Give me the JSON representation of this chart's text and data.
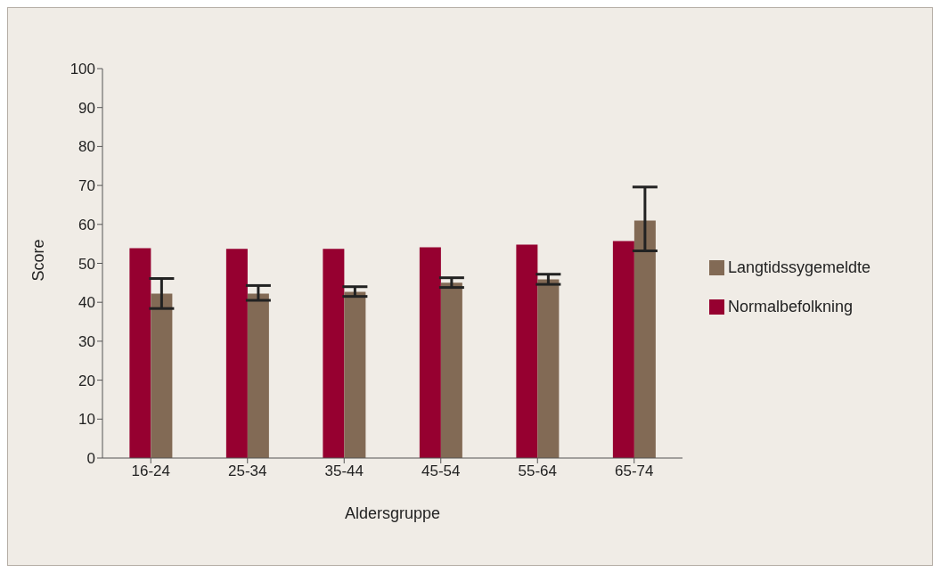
{
  "chart_data": {
    "type": "bar",
    "xlabel": "Aldersgruppe",
    "ylabel": "Score",
    "categories": [
      "16-24",
      "25-34",
      "35-44",
      "45-54",
      "55-64",
      "65-74"
    ],
    "series": [
      {
        "name": "Normalbefolkning",
        "color": "#960030",
        "values": [
          53.9,
          53.7,
          53.7,
          54.1,
          54.8,
          55.7
        ]
      },
      {
        "name": "Langtidssygemeldte",
        "color": "#826a55",
        "values": [
          42.2,
          42.2,
          42.7,
          45.0,
          45.9,
          61.0
        ],
        "errors": [
          [
            38.4,
            46.1
          ],
          [
            40.5,
            44.3
          ],
          [
            41.5,
            44.0
          ],
          [
            43.8,
            46.3
          ],
          [
            44.6,
            47.2
          ],
          [
            53.2,
            69.6
          ]
        ]
      }
    ],
    "ylim": [
      0,
      100
    ],
    "yticks": [
      0,
      10,
      20,
      30,
      40,
      50,
      60,
      70,
      80,
      90,
      100
    ],
    "grid": false,
    "legend": "right"
  }
}
